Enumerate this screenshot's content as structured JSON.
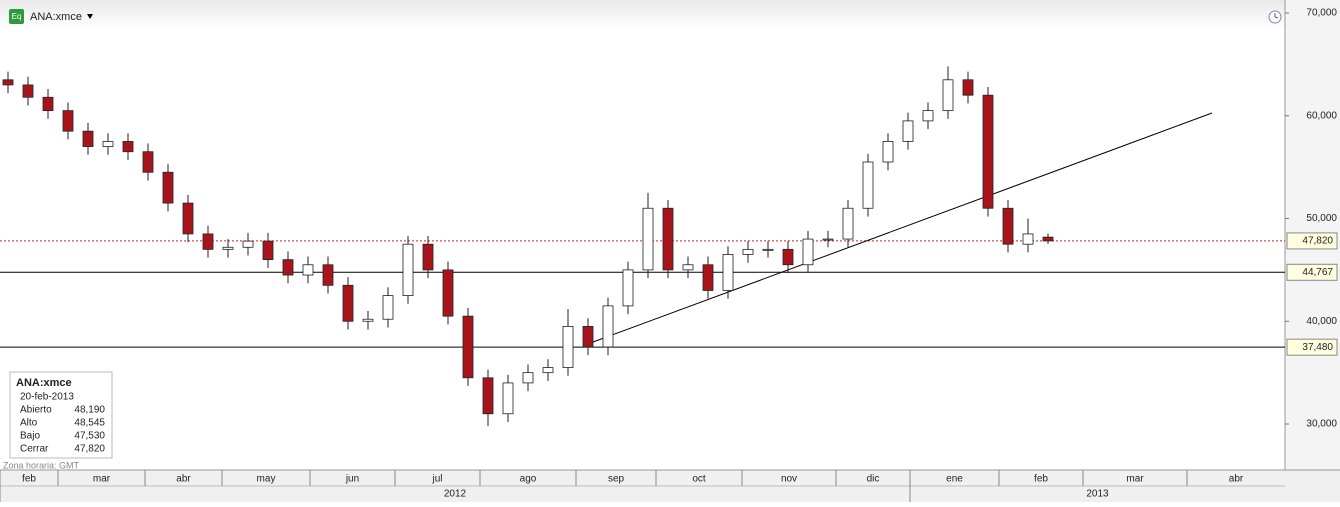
{
  "chart_data": {
    "type": "candlestick",
    "symbol": "ANA:xmce",
    "timezone": "Zona horaria: GMT",
    "open": [
      63500,
      63000,
      61800,
      60500,
      58500,
      57000,
      57500,
      56500,
      54500,
      51500,
      48500,
      47000,
      47200,
      47800,
      46000,
      44500,
      45500,
      43500,
      40000,
      40200,
      42500,
      47500,
      45000,
      40500,
      34500,
      31000,
      34000,
      35000,
      35500,
      39500,
      37500,
      41500,
      45000,
      51000,
      45000,
      45500,
      43000,
      46500,
      47000,
      47000,
      45500,
      48000,
      48000,
      51000,
      55500,
      57500,
      59500,
      60500,
      63500,
      62000,
      51000,
      47500,
      48190
    ],
    "high": [
      64300,
      63800,
      62600,
      61300,
      59300,
      58300,
      58300,
      57300,
      55300,
      52300,
      49300,
      48000,
      48600,
      48600,
      46800,
      46300,
      46300,
      44300,
      41000,
      43300,
      48300,
      48300,
      45800,
      41300,
      35300,
      34800,
      35800,
      36300,
      41200,
      40300,
      42300,
      45800,
      52500,
      51800,
      46300,
      46300,
      47300,
      47800,
      47800,
      47800,
      48800,
      48800,
      51800,
      56300,
      58300,
      60300,
      61300,
      64800,
      64300,
      62800,
      51800,
      50000,
      48545
    ],
    "low": [
      62200,
      61000,
      59700,
      57700,
      56200,
      56200,
      55700,
      53700,
      50700,
      47700,
      46200,
      46200,
      46400,
      45200,
      43700,
      43700,
      42700,
      39200,
      39200,
      39400,
      41700,
      44200,
      39700,
      33700,
      29800,
      30200,
      33200,
      34200,
      34700,
      36700,
      36700,
      40700,
      44200,
      44200,
      44200,
      42200,
      42200,
      45700,
      46200,
      44700,
      44700,
      47200,
      47200,
      50200,
      54700,
      56700,
      58700,
      59700,
      61200,
      50200,
      46700,
      46700,
      47530
    ],
    "close": [
      63000,
      61800,
      60500,
      58500,
      57000,
      57500,
      56500,
      54500,
      51500,
      48500,
      47000,
      47200,
      47800,
      46000,
      44500,
      45500,
      43500,
      40000,
      40200,
      42500,
      47500,
      45000,
      40500,
      34500,
      31000,
      34000,
      35000,
      35500,
      39500,
      37500,
      41500,
      45000,
      51000,
      45000,
      45500,
      43000,
      46500,
      47000,
      47000,
      45500,
      48000,
      48000,
      51000,
      55500,
      57500,
      59500,
      60500,
      63500,
      62000,
      51000,
      47500,
      48500,
      47820
    ],
    "up_color": "#ffffff",
    "down_color": "#a8141c",
    "ylim": [
      26500,
      71265
    ],
    "yticks": [
      {
        "value": 30000,
        "label": "30,000"
      },
      {
        "value": 40000,
        "label": "40,000"
      },
      {
        "value": 50000,
        "label": "50,000"
      },
      {
        "value": 60000,
        "label": "60,000"
      },
      {
        "value": 70000,
        "label": "70,000"
      }
    ],
    "xlim": [
      -0.4,
      63.85
    ],
    "xticks": [
      {
        "value": -0.4,
        "label": "feb"
      },
      {
        "value": 2.5,
        "label": "mar"
      },
      {
        "value": 6.85,
        "label": "abr"
      },
      {
        "value": 10.7,
        "label": "may"
      },
      {
        "value": 15.1,
        "label": "jun"
      },
      {
        "value": 19.35,
        "label": "jul"
      },
      {
        "value": 23.6,
        "label": "ago"
      },
      {
        "value": 28.4,
        "label": "sep"
      },
      {
        "value": 32.4,
        "label": "oct"
      },
      {
        "value": 36.7,
        "label": "nov"
      },
      {
        "value": 41.4,
        "label": "dic"
      },
      {
        "value": 45.1,
        "label": "ene"
      },
      {
        "value": 49.55,
        "label": "feb"
      },
      {
        "value": 53.75,
        "label": "mar"
      },
      {
        "value": 58.95,
        "label": "abr"
      }
    ],
    "year_ticks": [
      {
        "value": -0.4,
        "label": "2012"
      },
      {
        "value": 45.1,
        "label": "2013"
      }
    ],
    "levels": [
      {
        "value": 47820,
        "label": "47,820",
        "color": "#cc2222",
        "dashed": true
      },
      {
        "value": 44767,
        "label": "44,767",
        "color": "#000000",
        "dashed": false
      },
      {
        "value": 37480,
        "label": "37,480",
        "color": "#000000",
        "dashed": false
      }
    ],
    "trendline": {
      "x": [
        28.85,
        60.2
      ],
      "y": [
        37689,
        60268
      ],
      "color": "#000000"
    },
    "info_box": {
      "title": "ANA:xmce",
      "date": "20-feb-2013",
      "rows": [
        [
          "Abierto",
          "48,190"
        ],
        [
          "Alto",
          "48,545"
        ],
        [
          "Bajo",
          "47,530"
        ],
        [
          "Cerrar",
          "47,820"
        ]
      ]
    }
  }
}
